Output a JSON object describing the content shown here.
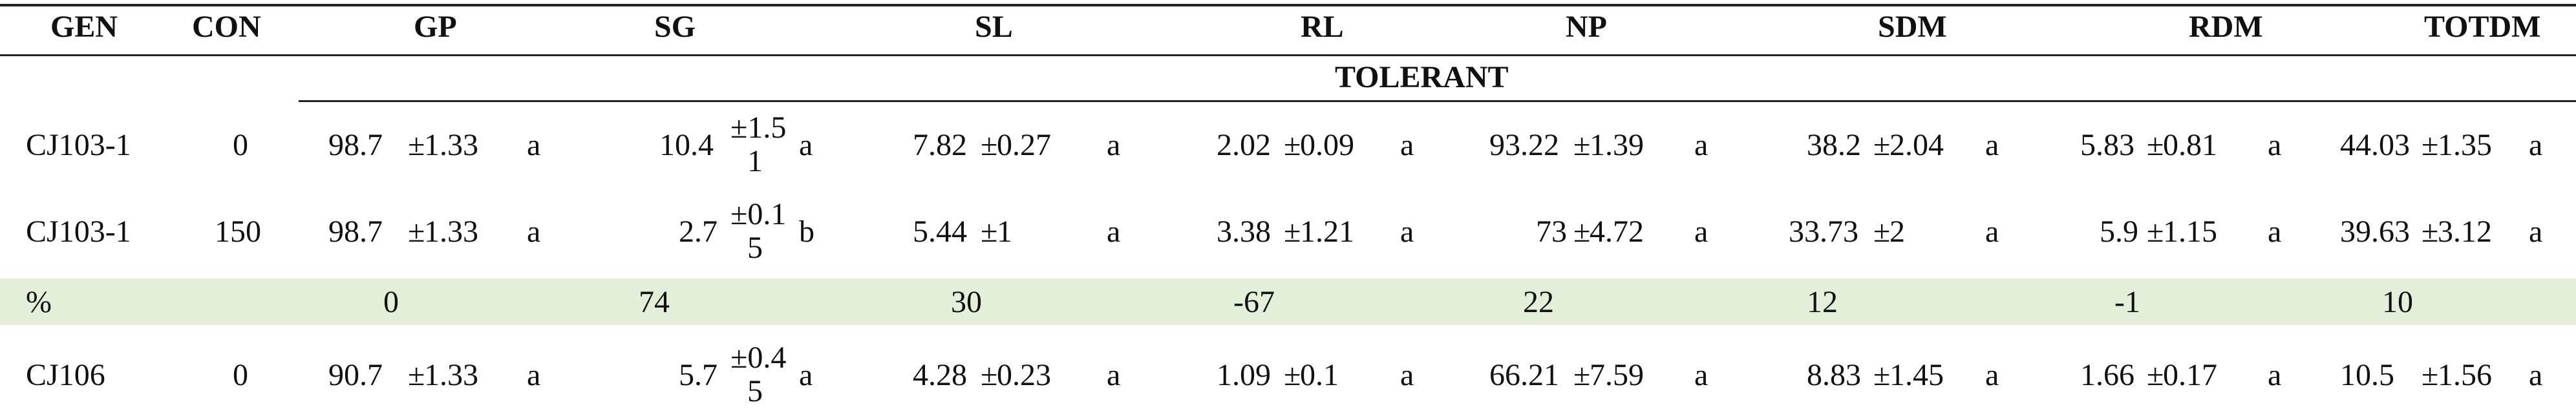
{
  "table": {
    "headers": [
      "GEN",
      "CON",
      "GP",
      "SG",
      "SL",
      "RL",
      "NP",
      "SDM",
      "RDM",
      "TOTDM"
    ],
    "group_label": "TOLERANT",
    "pm": "±",
    "rows": [
      {
        "gen": "CJ103-1",
        "con": "0",
        "gp": {
          "v": "98.7",
          "e": "1.33",
          "l": "a"
        },
        "sg": {
          "v": "10.4",
          "e1": "1.5",
          "e2": "1",
          "l": "a"
        },
        "sl": {
          "v": "7.82",
          "e": "0.27",
          "l": "a"
        },
        "rl": {
          "v": "2.02",
          "e": "0.09",
          "l": "a"
        },
        "np": {
          "v": "93.22",
          "e": "1.39",
          "l": "a"
        },
        "sdm": {
          "v": "38.2",
          "e": "2.04",
          "l": "a"
        },
        "rdm": {
          "v": "5.83",
          "e": "0.81",
          "l": "a"
        },
        "totdm": {
          "v": "44.03",
          "e": "1.35",
          "l": "a"
        }
      },
      {
        "gen": "CJ103-1",
        "con": "150",
        "gp": {
          "v": "98.7",
          "e": "1.33",
          "l": "a"
        },
        "sg": {
          "v": "2.7",
          "e1": "0.1",
          "e2": "5",
          "l": "b"
        },
        "sl": {
          "v": "5.44",
          "e": "1",
          "l": "a"
        },
        "rl": {
          "v": "3.38",
          "e": "1.21",
          "l": "a"
        },
        "np": {
          "v": "73",
          "e": "4.72",
          "l": "a"
        },
        "sdm": {
          "v": "33.73",
          "e": "2",
          "l": "a"
        },
        "rdm": {
          "v": "5.9",
          "e": "1.15",
          "l": "a"
        },
        "totdm": {
          "v": "39.63",
          "e": "3.12",
          "l": "a"
        }
      },
      {
        "pct_label": "%",
        "gp": "0",
        "sg": "74",
        "sl": "30",
        "rl": "-67",
        "np": "22",
        "sdm": "12",
        "rdm": "-1",
        "totdm": "10"
      },
      {
        "gen": "CJ106",
        "con": "0",
        "gp": {
          "v": "90.7",
          "e": "1.33",
          "l": "a"
        },
        "sg": {
          "v": "5.7",
          "e1": "0.4",
          "e2": "5",
          "l": "a"
        },
        "sl": {
          "v": "4.28",
          "e": "0.23",
          "l": "a"
        },
        "rl": {
          "v": "1.09",
          "e": "0.1",
          "l": "a"
        },
        "np": {
          "v": "66.21",
          "e": "7.59",
          "l": "a"
        },
        "sdm": {
          "v": "8.83",
          "e": "1.45",
          "l": "a"
        },
        "rdm": {
          "v": "1.66",
          "e": "0.17",
          "l": "a"
        },
        "totdm": {
          "v": "10.5",
          "e": "1.56",
          "l": "a"
        }
      }
    ]
  }
}
